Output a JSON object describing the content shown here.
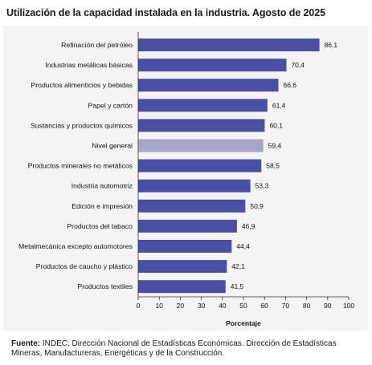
{
  "title": "Utilización de la capacidad instalada en la industria. Agosto de 2025",
  "source": {
    "label": "Fuente:",
    "text": " INDEC, Dirección Nacional de Estadísticas Económicas. Dirección de Estadísticas Mineras, Manufactureras, Energéticas y de la Construcción."
  },
  "colors": {
    "bar": "#4a4fa3",
    "highlight": "#a6a6c8",
    "panel": "#f4f4f4"
  },
  "chart_data": {
    "type": "bar",
    "orientation": "horizontal",
    "categories": [
      "Refinación del petróleo",
      "Industrias metálicas básicas",
      "Productos alimenticios y bebidas",
      "Papel y cartón",
      "Sustancias y productos químicos",
      "Nivel general",
      "Productos minerales no metálicos",
      "Industria automotriz",
      "Edición e impresión",
      "Productos del tabaco",
      "Metalmecánica excepto automotores",
      "Productos de caucho y plástico",
      "Productos textiles"
    ],
    "values": [
      86.1,
      70.4,
      66.6,
      61.4,
      60.1,
      59.4,
      58.5,
      53.3,
      50.9,
      46.9,
      44.4,
      42.1,
      41.5
    ],
    "value_labels": [
      "86,1",
      "70,4",
      "66,6",
      "61,4",
      "60,1",
      "59,4",
      "58,5",
      "53,3",
      "50,9",
      "46,9",
      "44,4",
      "42,1",
      "41,5"
    ],
    "highlight_category": "Nivel general",
    "xlabel": "Porcentaje",
    "xlim": [
      0,
      100
    ],
    "xticks": [
      0,
      10,
      20,
      30,
      40,
      50,
      60,
      70,
      80,
      90,
      100
    ],
    "grid": false
  }
}
